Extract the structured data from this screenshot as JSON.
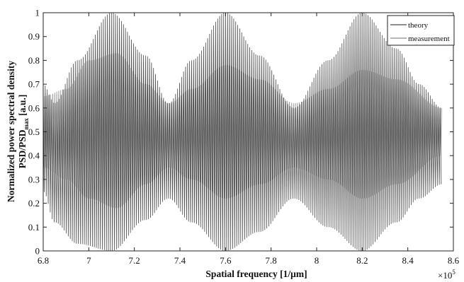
{
  "chart_data": {
    "type": "line",
    "xlabel": "Spatial frequency [1/μm]",
    "ylabel_line1": "Normalized power spectral density",
    "ylabel_line2_main": "PSD/PSD",
    "ylabel_line2_sub": "max",
    "ylabel_line2_unit": " [a.u.]",
    "x_multiplier": {
      "base": "×10",
      "exponent": "5"
    },
    "xlim": [
      680000,
      860000
    ],
    "ylim": [
      0,
      1
    ],
    "x_ticks": [
      680000,
      700000,
      720000,
      740000,
      760000,
      780000,
      800000,
      820000,
      840000,
      860000
    ],
    "x_tick_labels": [
      "6.8",
      "7",
      "7.2",
      "7.4",
      "7.6",
      "7.8",
      "8",
      "8.2",
      "8.4",
      "8.6"
    ],
    "y_ticks": [
      0,
      0.1,
      0.2,
      0.3,
      0.4,
      0.5,
      0.6,
      0.7,
      0.8,
      0.9,
      1
    ],
    "y_tick_labels": [
      "0",
      "0.1",
      "0.2",
      "0.3",
      "0.4",
      "0.5",
      "0.6",
      "0.7",
      "0.8",
      "0.9",
      "1"
    ],
    "x_range_data": [
      680000,
      855000
    ],
    "legend_position": "top-right",
    "grid": false,
    "series": [
      {
        "name": "theory",
        "color": "#4a4a4a",
        "description": "rapid oscillation about 0.5 with envelope",
        "envelope_x": [
          680000,
          685000,
          695000,
          710000,
          725000,
          735000,
          745000,
          760000,
          775000,
          790000,
          805000,
          820000,
          835000,
          845000,
          855000
        ],
        "envelope_top": [
          0.7,
          0.62,
          0.8,
          1.0,
          0.82,
          0.62,
          0.8,
          1.0,
          0.82,
          0.6,
          0.8,
          1.0,
          0.85,
          0.7,
          0.6
        ],
        "envelope_bottom": [
          0.25,
          0.12,
          0.03,
          0.0,
          0.13,
          0.22,
          0.12,
          0.0,
          0.08,
          0.22,
          0.1,
          0.0,
          0.12,
          0.22,
          0.28
        ],
        "peaks": [
          [
            680000,
            0.7
          ],
          [
            685000,
            0.62
          ],
          [
            695000,
            0.8
          ],
          [
            710000,
            1.0
          ],
          [
            725000,
            0.82
          ],
          [
            735000,
            0.62
          ],
          [
            745000,
            0.8
          ],
          [
            760000,
            1.0
          ],
          [
            775000,
            0.82
          ],
          [
            790000,
            0.6
          ],
          [
            805000,
            0.8
          ],
          [
            820000,
            1.0
          ],
          [
            835000,
            0.85
          ],
          [
            845000,
            0.7
          ],
          [
            855000,
            0.6
          ]
        ]
      },
      {
        "name": "measurement",
        "color": "#8a8a8a",
        "description": "rapid oscillation about 0.5 with smaller envelope",
        "envelope_x": [
          680000,
          690000,
          700000,
          712000,
          725000,
          735000,
          745000,
          760000,
          775000,
          790000,
          805000,
          820000,
          835000,
          855000
        ],
        "envelope_top": [
          0.65,
          0.68,
          0.8,
          0.83,
          0.7,
          0.62,
          0.68,
          0.78,
          0.72,
          0.62,
          0.68,
          0.76,
          0.72,
          0.6
        ],
        "envelope_bottom": [
          0.35,
          0.3,
          0.22,
          0.18,
          0.28,
          0.35,
          0.3,
          0.22,
          0.28,
          0.35,
          0.3,
          0.22,
          0.28,
          0.4
        ]
      }
    ]
  }
}
